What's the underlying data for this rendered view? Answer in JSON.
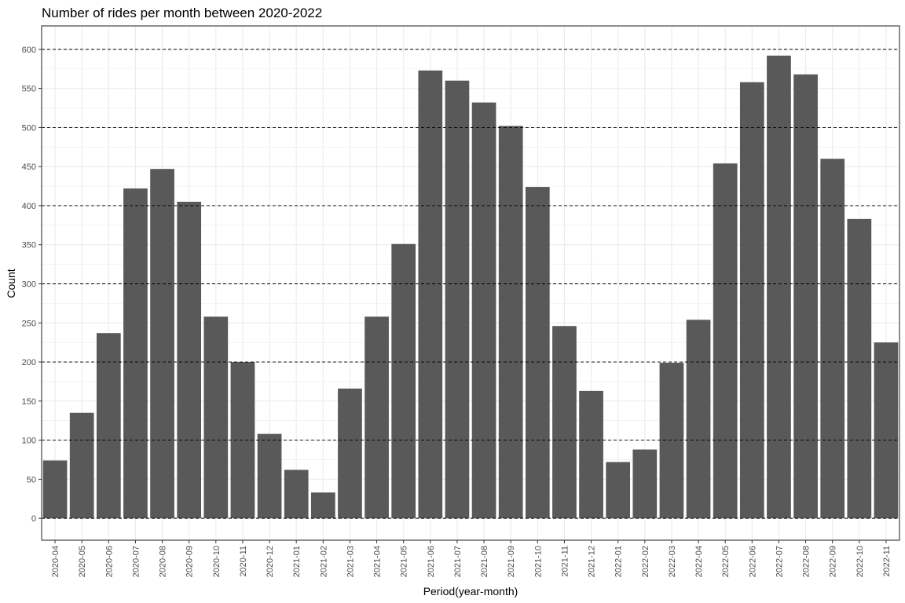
{
  "chart_data": {
    "type": "bar",
    "title": "Number of rides per month between 2020-2022",
    "xlabel": "Period(year-month)",
    "ylabel": "Count",
    "ylim": [
      -28,
      630
    ],
    "yticks": [
      0,
      50,
      100,
      150,
      200,
      250,
      300,
      350,
      400,
      450,
      500,
      550,
      600
    ],
    "reference_lines": [
      0,
      100,
      200,
      300,
      400,
      500,
      600
    ],
    "grid": true,
    "legend": "none",
    "categories": [
      "2020-04",
      "2020-05",
      "2020-06",
      "2020-07",
      "2020-08",
      "2020-09",
      "2020-10",
      "2020-11",
      "2020-12",
      "2021-01",
      "2021-02",
      "2021-03",
      "2021-04",
      "2021-05",
      "2021-06",
      "2021-07",
      "2021-08",
      "2021-09",
      "2021-10",
      "2021-11",
      "2021-12",
      "2022-01",
      "2022-02",
      "2022-03",
      "2022-04",
      "2022-05",
      "2022-06",
      "2022-07",
      "2022-08",
      "2022-09",
      "2022-10",
      "2022-11"
    ],
    "values": [
      74,
      135,
      237,
      422,
      447,
      405,
      258,
      200,
      108,
      62,
      33,
      166,
      258,
      351,
      573,
      560,
      532,
      502,
      424,
      246,
      163,
      72,
      88,
      199,
      254,
      454,
      558,
      592,
      568,
      460,
      383,
      225
    ],
    "colors": {
      "bar": "#595959",
      "panel_border": "#333333",
      "grid": "#ebebeb",
      "reference_line": "#000000",
      "background": "#ffffff"
    }
  }
}
